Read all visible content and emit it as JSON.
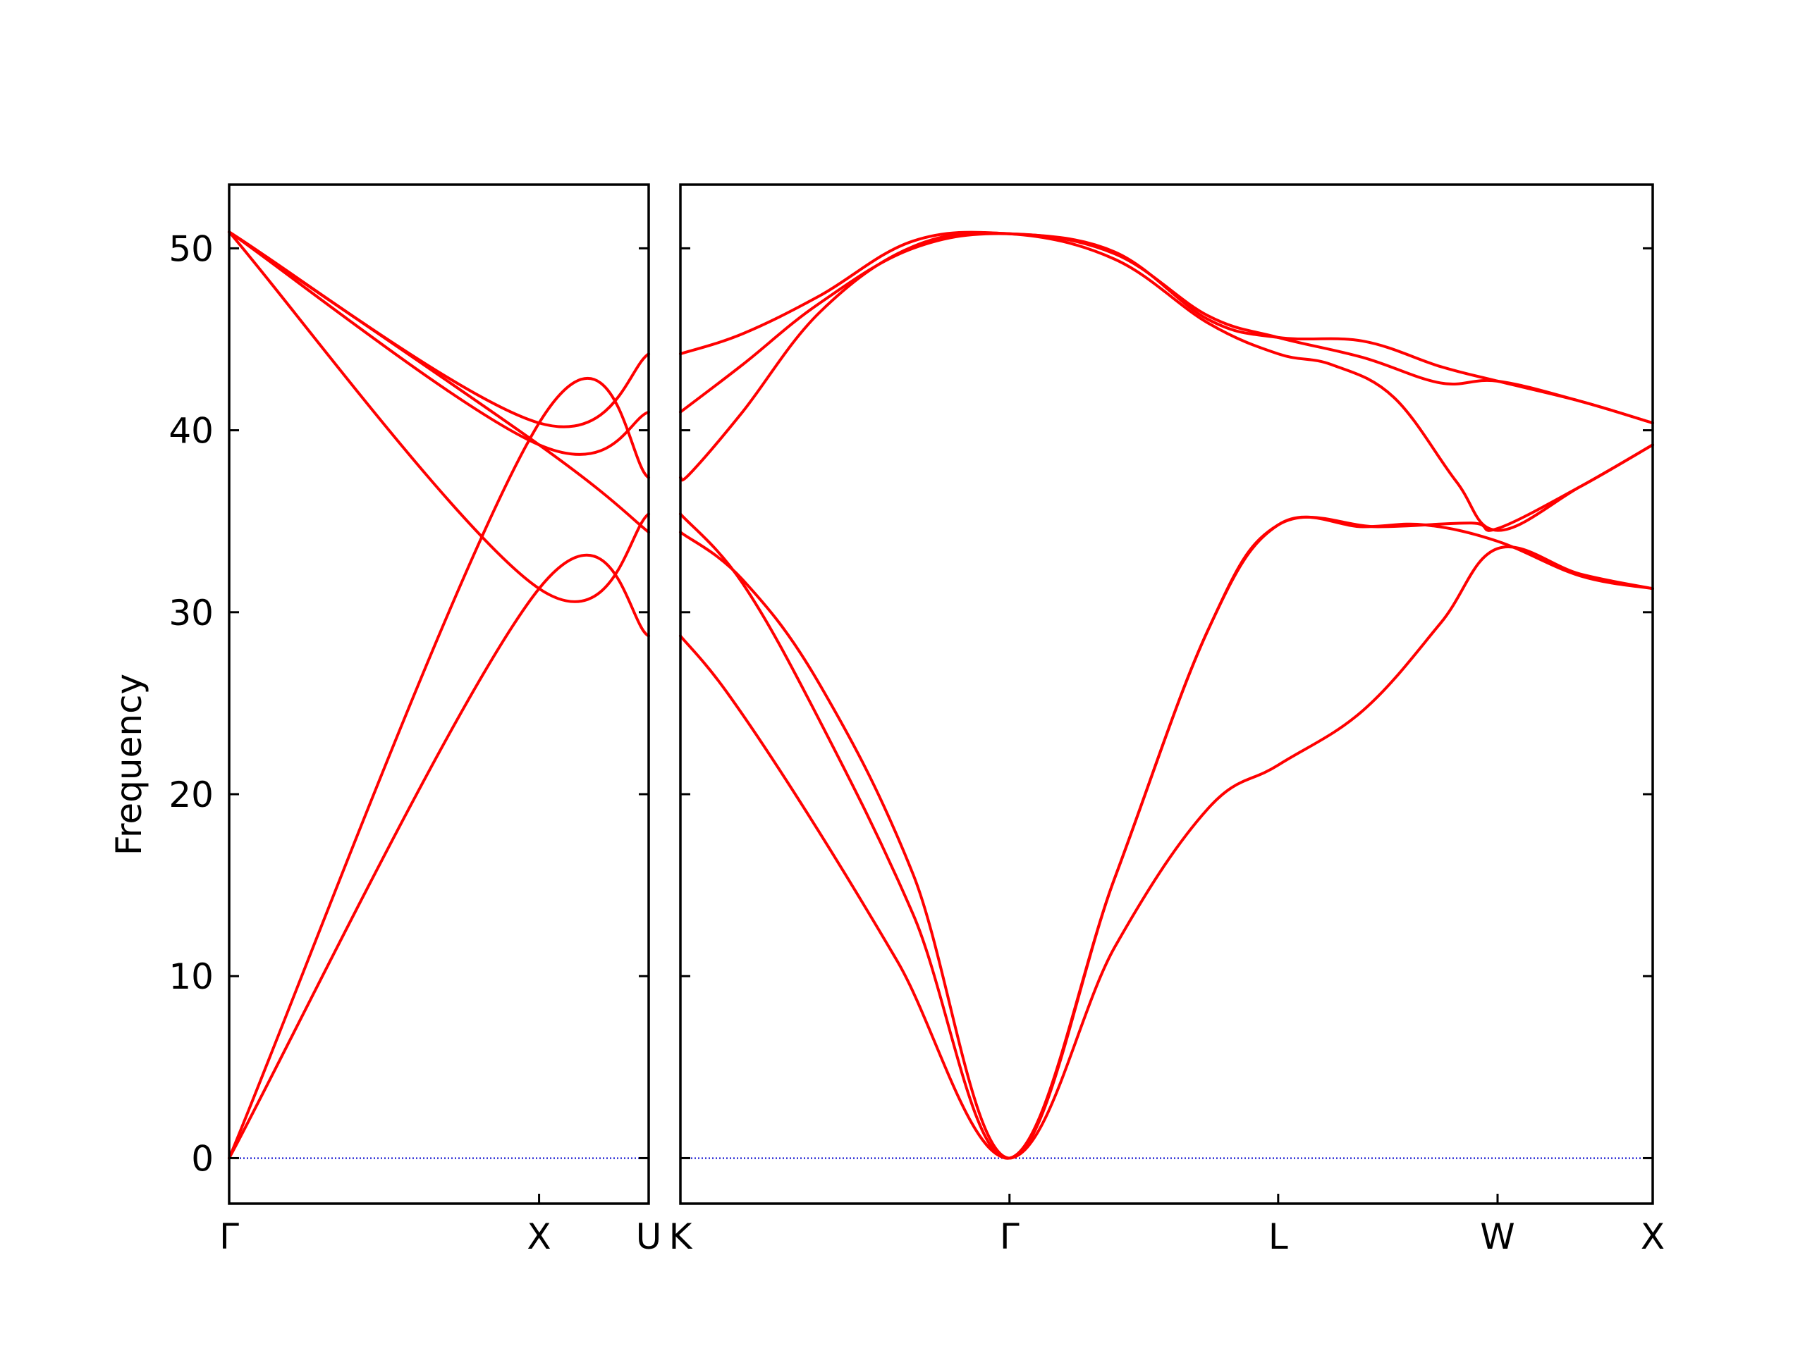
{
  "chart_data": {
    "type": "line",
    "ylabel": "Frequency",
    "ylim": [
      -2.5,
      53.5
    ],
    "yticks": [
      0,
      10,
      20,
      30,
      40,
      50
    ],
    "line_color": "#ff0000",
    "zero_line_color": "#0000cc",
    "panels": [
      {
        "xticks": [
          {
            "label": "Γ",
            "x": 0.0
          },
          {
            "label": "X",
            "x": 1.0
          },
          {
            "label": "U",
            "x": 1.3536
          }
        ],
        "xlim": [
          0.0,
          1.3536
        ],
        "zero_line": true,
        "series": [
          {
            "x": [
              0.0,
              1.0,
              1.3536
            ],
            "y": [
              0.0,
              31.3,
              28.7
            ]
          },
          {
            "x": [
              0.0,
              1.0,
              1.3536
            ],
            "y": [
              0.0,
              40.4,
              37.4
            ]
          },
          {
            "x": [
              0.0,
              1.0,
              1.3536
            ],
            "y": [
              50.9,
              39.2,
              34.4
            ]
          },
          {
            "x": [
              0.0,
              1.0,
              1.3536
            ],
            "y": [
              50.9,
              40.4,
              44.2
            ]
          },
          {
            "x": [
              0.0,
              1.0,
              1.3536
            ],
            "y": [
              50.9,
              39.2,
              41.0
            ]
          },
          {
            "x": [
              0.0,
              1.0,
              1.3536
            ],
            "y": [
              50.9,
              31.3,
              35.4
            ]
          }
        ]
      },
      {
        "xticks": [
          {
            "label": "K",
            "x": 0.0
          },
          {
            "label": "Γ",
            "x": 1.0607
          },
          {
            "label": "L",
            "x": 1.9267
          },
          {
            "label": "W",
            "x": 2.6338
          },
          {
            "label": "X",
            "x": 3.1338
          }
        ],
        "xlim": [
          0.0,
          3.1338
        ],
        "zero_line": true,
        "series": [
          {
            "x": [
              0.0,
              0.15,
              0.4,
              0.7,
              1.0607,
              1.4,
              1.7,
              1.9267,
              2.2,
              2.45,
              2.6338,
              2.9,
              3.1338
            ],
            "y": [
              28.7,
              25.6,
              19.2,
              10.8,
              0.0,
              11.6,
              19.2,
              21.6,
              24.6,
              29.4,
              33.5,
              32.1,
              31.3
            ]
          },
          {
            "x": [
              0.0,
              0.2,
              0.45,
              0.75,
              1.0607,
              1.4,
              1.7,
              1.9267,
              2.25,
              2.55,
              2.6338,
              2.9,
              3.1338
            ],
            "y": [
              35.4,
              31.6,
              24.0,
              13.4,
              0.0,
              15.4,
              29.0,
              34.8,
              34.7,
              34.9,
              34.6,
              36.9,
              39.2
            ]
          },
          {
            "x": [
              0.0,
              0.2,
              0.45,
              0.75,
              1.0607,
              1.4,
              1.7,
              1.9267,
              2.2,
              2.4,
              2.6338,
              2.9,
              3.1338
            ],
            "y": [
              34.4,
              31.8,
              26.0,
              15.6,
              0.0,
              15.4,
              29.0,
              34.8,
              34.7,
              34.8,
              33.9,
              32.0,
              31.3
            ]
          },
          {
            "x": [
              0.0,
              0.03,
              0.2,
              0.45,
              0.75,
              1.0607,
              1.4,
              1.7,
              1.9267,
              2.1,
              2.3,
              2.5,
              2.6338,
              2.9,
              3.1338
            ],
            "y": [
              37.4,
              37.6,
              41.0,
              46.5,
              50.1,
              50.8,
              49.4,
              45.9,
              44.2,
              43.6,
              41.8,
              37.2,
              34.5,
              36.9,
              39.2
            ]
          },
          {
            "x": [
              0.0,
              0.2,
              0.45,
              0.75,
              1.0607,
              1.4,
              1.7,
              1.9267,
              2.2,
              2.45,
              2.6338,
              2.9,
              3.1338
            ],
            "y": [
              41.0,
              43.6,
              47.0,
              50.0,
              50.8,
              49.7,
              46.3,
              45.1,
              44.0,
              42.6,
              42.7,
              41.6,
              40.4
            ]
          },
          {
            "x": [
              0.0,
              0.2,
              0.45,
              0.75,
              1.0607,
              1.4,
              1.7,
              1.9267,
              2.2,
              2.45,
              2.6338,
              2.9,
              3.1338
            ],
            "y": [
              44.2,
              45.3,
              47.4,
              50.4,
              50.8,
              49.8,
              46.1,
              45.1,
              44.9,
              43.5,
              42.7,
              41.6,
              40.4
            ]
          }
        ]
      }
    ]
  }
}
